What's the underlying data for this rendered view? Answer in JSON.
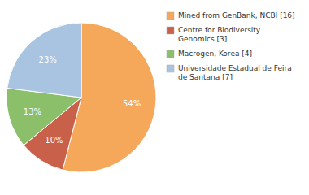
{
  "chart_data": {
    "type": "pie",
    "categories": [
      "Mined from GenBank, NCBI [16]",
      "Centre for Biodiversity\nGenomics [3]",
      "Macrogen, Korea [4]",
      "Universidade Estadual de Feira\nde Santana [7]"
    ],
    "values": [
      54,
      10,
      13,
      23
    ],
    "value_labels": [
      "54%",
      "10%",
      "13%",
      "23%"
    ],
    "colors": [
      "#F5A85A",
      "#C8604A",
      "#8BBF6A",
      "#A8C4E0"
    ],
    "data_labels": true,
    "legend": "upper right"
  }
}
